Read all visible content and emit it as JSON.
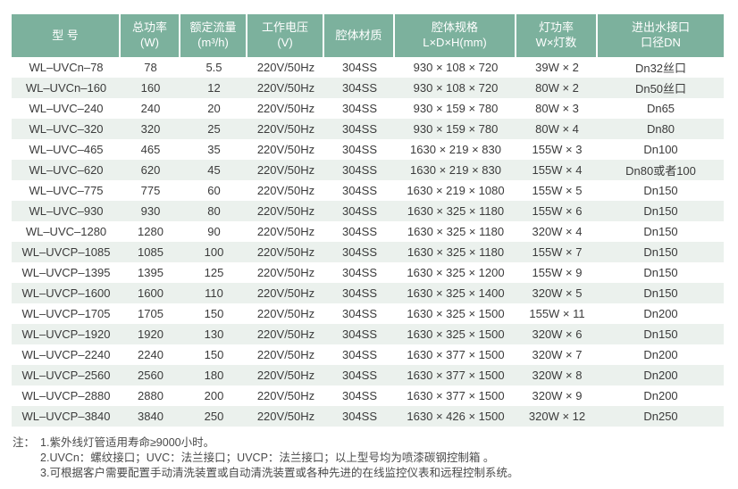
{
  "colors": {
    "page_bg": "#ffffff",
    "header_bg": "#7cb19d",
    "header_text": "#ffffff",
    "row_bg": "#ffffff",
    "row_alt_bg": "#ebf1ed",
    "body_text": "#3b3b3b",
    "note_text": "#4a4a4a"
  },
  "table": {
    "headers": [
      {
        "title": "型 号",
        "sub": ""
      },
      {
        "title": "总功率",
        "sub": "(W)"
      },
      {
        "title": "额定流量",
        "sub": "(m³/h)"
      },
      {
        "title": "工作电压",
        "sub": "(V)"
      },
      {
        "title": "腔体材质",
        "sub": ""
      },
      {
        "title": "腔体规格",
        "sub": "L×D×H(mm)"
      },
      {
        "title": "灯功率",
        "sub": "W×灯数"
      },
      {
        "title": "进出水接口",
        "sub": "口径DN"
      }
    ],
    "column_keys": [
      "model",
      "total-power",
      "rated-flow",
      "voltage",
      "material",
      "cavity-spec",
      "lamp-power",
      "dn-size"
    ],
    "rows": [
      [
        "WL–UVCn–78",
        "78",
        "5.5",
        "220V/50Hz",
        "304SS",
        "930 × 108 × 720",
        "39W × 2",
        "Dn32丝口"
      ],
      [
        "WL–UVCn–160",
        "160",
        "12",
        "220V/50Hz",
        "304SS",
        "930 × 108 × 720",
        "80W × 2",
        "Dn50丝口"
      ],
      [
        "WL–UVC–240",
        "240",
        "20",
        "220V/50Hz",
        "304SS",
        "930 × 159 × 780",
        "80W × 3",
        "Dn65"
      ],
      [
        "WL–UVC–320",
        "320",
        "25",
        "220V/50Hz",
        "304SS",
        "930 × 159 × 780",
        "80W × 4",
        "Dn80"
      ],
      [
        "WL–UVC–465",
        "465",
        "35",
        "220V/50Hz",
        "304SS",
        "1630 × 219 × 830",
        "155W × 3",
        "Dn100"
      ],
      [
        "WL–UVC–620",
        "620",
        "45",
        "220V/50Hz",
        "304SS",
        "1630 × 219 × 830",
        "155W × 4",
        "Dn80或者100"
      ],
      [
        "WL–UVC–775",
        "775",
        "60",
        "220V/50Hz",
        "304SS",
        "1630 × 219 × 1080",
        "155W × 5",
        "Dn150"
      ],
      [
        "WL–UVC–930",
        "930",
        "80",
        "220V/50Hz",
        "304SS",
        "1630 × 325 × 1180",
        "155W × 6",
        "Dn150"
      ],
      [
        "WL–UVC–1280",
        "1280",
        "90",
        "220V/50Hz",
        "304SS",
        "1630 × 325 × 1180",
        "320W × 4",
        "Dn150"
      ],
      [
        "WL–UVCP–1085",
        "1085",
        "100",
        "220V/50Hz",
        "304SS",
        "1630 × 325 × 1180",
        "155W × 7",
        "Dn150"
      ],
      [
        "WL–UVCP–1395",
        "1395",
        "125",
        "220V/50Hz",
        "304SS",
        "1630 × 325 × 1200",
        "155W × 9",
        "Dn150"
      ],
      [
        "WL–UVCP–1600",
        "1600",
        "110",
        "220V/50Hz",
        "304SS",
        "1630 × 325 × 1400",
        "320W × 5",
        "Dn150"
      ],
      [
        "WL–UVCP–1705",
        "1705",
        "150",
        "220V/50Hz",
        "304SS",
        "1630 × 325 × 1500",
        "155W × 11",
        "Dn200"
      ],
      [
        "WL–UVCP–1920",
        "1920",
        "130",
        "220V/50Hz",
        "304SS",
        "1630 × 325 × 1500",
        "320W × 6",
        "Dn150"
      ],
      [
        "WL–UVCP–2240",
        "2240",
        "150",
        "220V/50Hz",
        "304SS",
        "1630 × 377 × 1500",
        "320W × 7",
        "Dn200"
      ],
      [
        "WL–UVCP–2560",
        "2560",
        "180",
        "220V/50Hz",
        "304SS",
        "1630 × 377 × 1500",
        "320W × 8",
        "Dn200"
      ],
      [
        "WL–UVCP–2880",
        "2880",
        "200",
        "220V/50Hz",
        "304SS",
        "1630 × 377 × 1500",
        "320W × 9",
        "Dn200"
      ],
      [
        "WL–UVCP–3840",
        "3840",
        "250",
        "220V/50Hz",
        "304SS",
        "1630 × 426 × 1500",
        "320W × 12",
        "Dn250"
      ]
    ]
  },
  "notes": {
    "label": "注：",
    "items": [
      "1.紫外线灯管适用寿命≥9000小时。",
      "2.UVCn：螺纹接口；UVC：法兰接口；UVCP：法兰接口；以上型号均为喷漆碳钢控制箱 。",
      "3.可根据客户需要配置手动清洗装置或自动清洗装置或各种先进的在线监控仪表和远程控制系统。"
    ]
  }
}
